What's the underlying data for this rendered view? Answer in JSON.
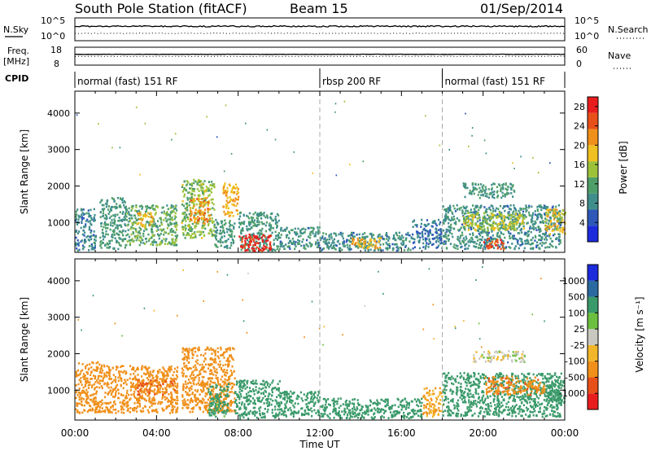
{
  "header": {
    "station": "South Pole Station (fitACF)",
    "beam": "Beam 15",
    "date": "01/Sep/2014"
  },
  "noise_panel": {
    "left_label": "N.Sky",
    "right_label": "N.Search",
    "left_ticks": [
      "10^5",
      "10^0"
    ],
    "right_ticks": [
      "10^5",
      "10^0"
    ]
  },
  "freq_panel": {
    "left_label_line1": "Freq.",
    "left_label_line2": "[MHz]",
    "right_label": "Nave",
    "left_ticks": [
      "18",
      "8"
    ],
    "right_ticks": [
      "60",
      "0"
    ]
  },
  "cpid": {
    "label": "CPID",
    "segments": [
      {
        "start_hour": 0,
        "end_hour": 12,
        "text": "normal (fast) 151 RF"
      },
      {
        "start_hour": 12,
        "end_hour": 18,
        "text": "rbsp 200 RF"
      },
      {
        "start_hour": 18,
        "end_hour": 24,
        "text": "normal (fast) 151 RF"
      }
    ]
  },
  "colors": {
    "power_scale": [
      "#1c2bdc",
      "#2e58b8",
      "#3f8e8c",
      "#4e9e6a",
      "#9cc23a",
      "#f0c020",
      "#f0901a",
      "#e8501a",
      "#e81e1e"
    ],
    "velocity_scale": [
      "#e81e1e",
      "#e8501a",
      "#f0901a",
      "#f2b62a",
      "#c8c8c0",
      "#6cc040",
      "#3a9a6a",
      "#2a6aa0",
      "#1c2bdc"
    ]
  },
  "chart_data": [
    {
      "type": "heatmap",
      "name": "power",
      "ylabel": "Slant Range [km]",
      "ylim": [
        180,
        4600
      ],
      "yticks": [
        1000,
        2000,
        3000,
        4000
      ],
      "xlim": [
        0,
        24
      ],
      "colorbar": {
        "label": "Power [dB]",
        "ticks": [
          "4",
          "8",
          "12",
          "16",
          "20",
          "24",
          "28"
        ],
        "range": [
          0,
          30
        ]
      },
      "scatter_regions": [
        {
          "t0": 0.0,
          "t1": 1.0,
          "r0": 250,
          "r1": 1400,
          "v": 8
        },
        {
          "t0": 1.2,
          "t1": 2.5,
          "r0": 300,
          "r1": 1700,
          "v": 10
        },
        {
          "t0": 2.5,
          "t1": 5.0,
          "r0": 400,
          "r1": 1500,
          "v": 12
        },
        {
          "t0": 3.0,
          "t1": 3.8,
          "r0": 900,
          "r1": 1300,
          "v": 20
        },
        {
          "t0": 5.2,
          "t1": 6.8,
          "r0": 600,
          "r1": 2200,
          "v": 14
        },
        {
          "t0": 5.6,
          "t1": 6.6,
          "r0": 1000,
          "r1": 1700,
          "v": 22
        },
        {
          "t0": 6.8,
          "t1": 7.8,
          "r0": 300,
          "r1": 1100,
          "v": 10
        },
        {
          "t0": 7.2,
          "t1": 8.0,
          "r0": 1200,
          "r1": 2100,
          "v": 20
        },
        {
          "t0": 8.0,
          "t1": 10.0,
          "r0": 250,
          "r1": 1300,
          "v": 10
        },
        {
          "t0": 8.0,
          "t1": 9.6,
          "r0": 250,
          "r1": 700,
          "v": 28
        },
        {
          "t0": 10.0,
          "t1": 12.0,
          "r0": 300,
          "r1": 900,
          "v": 9
        },
        {
          "t0": 12.0,
          "t1": 16.5,
          "r0": 250,
          "r1": 750,
          "v": 9
        },
        {
          "t0": 13.5,
          "t1": 15.0,
          "r0": 300,
          "r1": 600,
          "v": 20
        },
        {
          "t0": 16.5,
          "t1": 18.0,
          "r0": 300,
          "r1": 1100,
          "v": 7
        },
        {
          "t0": 18.0,
          "t1": 23.8,
          "r0": 300,
          "r1": 1500,
          "v": 9
        },
        {
          "t0": 19.0,
          "t1": 22.0,
          "r0": 800,
          "r1": 1300,
          "v": 16
        },
        {
          "t0": 19.0,
          "t1": 21.5,
          "r0": 1700,
          "r1": 2100,
          "v": 10
        },
        {
          "t0": 20.0,
          "t1": 21.0,
          "r0": 300,
          "r1": 600,
          "v": 26
        },
        {
          "t0": 23.0,
          "t1": 24.0,
          "r0": 700,
          "r1": 1400,
          "v": 18
        }
      ]
    },
    {
      "type": "heatmap",
      "name": "velocity",
      "ylabel": "Slant Range [km]",
      "xlabel": "Time UT",
      "ylim": [
        180,
        4600
      ],
      "yticks": [
        1000,
        2000,
        3000,
        4000
      ],
      "xlim": [
        0,
        24
      ],
      "xticks": [
        "00:00",
        "04:00",
        "08:00",
        "12:00",
        "16:00",
        "20:00",
        "00:00"
      ],
      "colorbar": {
        "label": "Velocity [m s⁻¹]",
        "ticks": [
          "-1000",
          "-500",
          "-100",
          "-25",
          "25",
          "100",
          "500",
          "1000"
        ]
      },
      "scatter_regions": [
        {
          "t0": 0.0,
          "t1": 1.5,
          "r0": 400,
          "r1": 1800,
          "v": -300
        },
        {
          "t0": 1.5,
          "t1": 5.0,
          "r0": 400,
          "r1": 1700,
          "v": -250
        },
        {
          "t0": 3.0,
          "t1": 5.0,
          "r0": 900,
          "r1": 1300,
          "v": -500
        },
        {
          "t0": 5.2,
          "t1": 7.8,
          "r0": 400,
          "r1": 2200,
          "v": -200
        },
        {
          "t0": 6.5,
          "t1": 7.5,
          "r0": 300,
          "r1": 1200,
          "v": 150
        },
        {
          "t0": 7.8,
          "t1": 10.0,
          "r0": 250,
          "r1": 1300,
          "v": 200
        },
        {
          "t0": 10.0,
          "t1": 12.0,
          "r0": 300,
          "r1": 1000,
          "v": 200
        },
        {
          "t0": 12.0,
          "t1": 17.0,
          "r0": 250,
          "r1": 800,
          "v": 180
        },
        {
          "t0": 17.0,
          "t1": 18.0,
          "r0": 300,
          "r1": 1100,
          "v": -100
        },
        {
          "t0": 18.0,
          "t1": 23.8,
          "r0": 300,
          "r1": 1500,
          "v": 180
        },
        {
          "t0": 20.0,
          "t1": 23.0,
          "r0": 900,
          "r1": 1400,
          "v": -400
        },
        {
          "t0": 19.5,
          "t1": 22.0,
          "r0": 1800,
          "r1": 2100,
          "v": 0
        },
        {
          "t0": 23.0,
          "t1": 24.0,
          "r0": 600,
          "r1": 1300,
          "v": 200
        }
      ]
    }
  ]
}
